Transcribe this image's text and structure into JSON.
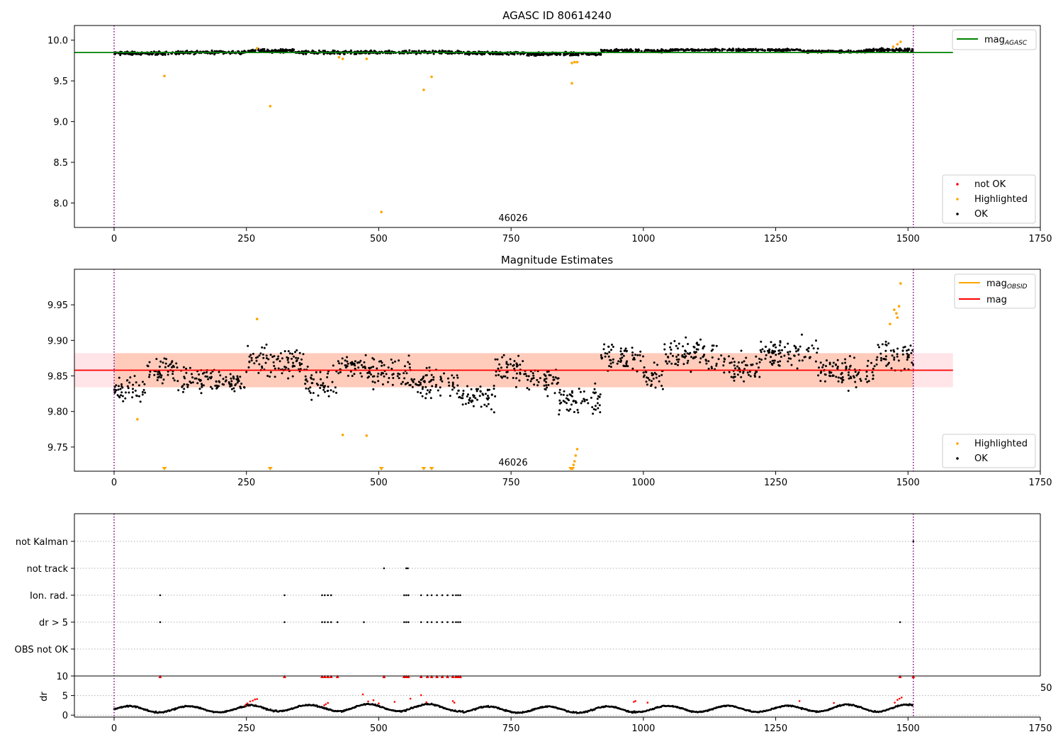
{
  "chart_data": [
    {
      "type": "scatter",
      "title": "AGASC ID 80614240",
      "xlim": [
        -75,
        1750
      ],
      "ylim": [
        7.7,
        10.18
      ],
      "xticks": [
        0,
        250,
        500,
        750,
        1000,
        1250,
        1500,
        1750
      ],
      "yticks": [
        8.0,
        8.5,
        9.0,
        9.5,
        10.0
      ],
      "annotation": "46026",
      "vlines": [
        0,
        1510
      ],
      "mag_agasc": 9.848,
      "legends": {
        "line": [
          {
            "label": "mag",
            "sub": "AGASC",
            "color": "#008000"
          }
        ],
        "markers": [
          {
            "label": "not OK",
            "color": "#ff0000"
          },
          {
            "label": "Highlighted",
            "color": "#ffa500"
          },
          {
            "label": "OK",
            "color": "#000000"
          }
        ]
      },
      "highlighted": [
        [
          95,
          9.56
        ],
        [
          270,
          9.9
        ],
        [
          295,
          9.19
        ],
        [
          425,
          9.79
        ],
        [
          432,
          9.77
        ],
        [
          477,
          9.77
        ],
        [
          505,
          7.89
        ],
        [
          585,
          9.39
        ],
        [
          600,
          9.55
        ],
        [
          865,
          9.47
        ],
        [
          865,
          9.72
        ],
        [
          870,
          9.73
        ],
        [
          875,
          9.73
        ],
        [
          1472,
          9.92
        ],
        [
          1480,
          9.95
        ],
        [
          1486,
          9.98
        ]
      ],
      "ok_segments": [
        {
          "x0": 0,
          "x1": 120,
          "y": 9.84,
          "spread": 0.03
        },
        {
          "x0": 120,
          "x1": 250,
          "y": 9.85,
          "spread": 0.03
        },
        {
          "x0": 250,
          "x1": 340,
          "y": 9.87,
          "spread": 0.03
        },
        {
          "x0": 340,
          "x1": 470,
          "y": 9.85,
          "spread": 0.03
        },
        {
          "x0": 470,
          "x1": 660,
          "y": 9.85,
          "spread": 0.03
        },
        {
          "x0": 660,
          "x1": 780,
          "y": 9.84,
          "spread": 0.03
        },
        {
          "x0": 780,
          "x1": 920,
          "y": 9.83,
          "spread": 0.03
        },
        {
          "x0": 920,
          "x1": 1050,
          "y": 9.87,
          "spread": 0.03
        },
        {
          "x0": 1050,
          "x1": 1300,
          "y": 9.88,
          "spread": 0.02
        },
        {
          "x0": 1300,
          "x1": 1420,
          "y": 9.86,
          "spread": 0.02
        },
        {
          "x0": 1420,
          "x1": 1510,
          "y": 9.88,
          "spread": 0.03
        }
      ]
    },
    {
      "type": "scatter",
      "title": "Magnitude Estimates",
      "xlim": [
        -75,
        1750
      ],
      "ylim": [
        9.716,
        10.0
      ],
      "xticks": [
        0,
        250,
        500,
        750,
        1000,
        1250,
        1500,
        1750
      ],
      "yticks": [
        9.75,
        9.8,
        9.85,
        9.9,
        9.95
      ],
      "annotation": "46026",
      "vlines": [
        0,
        1510
      ],
      "mag": 9.858,
      "band": [
        9.834,
        9.882
      ],
      "band_color": "#ffc8b4",
      "band_pink_color": "#ffe4e8",
      "legends": {
        "line": [
          {
            "label": "mag",
            "sub": "OBSID",
            "color": "#ffa500"
          },
          {
            "label": "mag",
            "sub": "",
            "color": "#ff0000"
          }
        ],
        "markers": [
          {
            "label": "Highlighted",
            "color": "#ffa500"
          },
          {
            "label": "OK",
            "color": "#000000"
          }
        ]
      },
      "highlighted": [
        [
          44,
          9.789
        ],
        [
          270,
          9.93
        ],
        [
          432,
          9.767
        ],
        [
          477,
          9.766
        ],
        [
          865,
          9.72
        ],
        [
          868,
          9.725
        ],
        [
          870,
          9.73
        ],
        [
          872,
          9.738
        ],
        [
          875,
          9.747
        ],
        [
          1466,
          9.923
        ],
        [
          1474,
          9.943
        ],
        [
          1478,
          9.938
        ],
        [
          1480,
          9.932
        ],
        [
          1483,
          9.948
        ],
        [
          1486,
          9.98
        ]
      ],
      "below_range": [
        95,
        295,
        505,
        585,
        600,
        863,
        866
      ],
      "ok_segments": [
        {
          "x0": 0,
          "x1": 60,
          "y": 9.832,
          "spread": 0.025
        },
        {
          "x0": 60,
          "x1": 120,
          "y": 9.86,
          "spread": 0.03
        },
        {
          "x0": 120,
          "x1": 200,
          "y": 9.845,
          "spread": 0.025
        },
        {
          "x0": 200,
          "x1": 250,
          "y": 9.84,
          "spread": 0.025
        },
        {
          "x0": 250,
          "x1": 360,
          "y": 9.868,
          "spread": 0.03
        },
        {
          "x0": 360,
          "x1": 420,
          "y": 9.84,
          "spread": 0.03
        },
        {
          "x0": 420,
          "x1": 480,
          "y": 9.862,
          "spread": 0.03
        },
        {
          "x0": 480,
          "x1": 560,
          "y": 9.855,
          "spread": 0.03
        },
        {
          "x0": 560,
          "x1": 650,
          "y": 9.84,
          "spread": 0.03
        },
        {
          "x0": 650,
          "x1": 720,
          "y": 9.82,
          "spread": 0.03
        },
        {
          "x0": 720,
          "x1": 780,
          "y": 9.86,
          "spread": 0.03
        },
        {
          "x0": 780,
          "x1": 840,
          "y": 9.845,
          "spread": 0.03
        },
        {
          "x0": 840,
          "x1": 920,
          "y": 9.815,
          "spread": 0.03
        },
        {
          "x0": 920,
          "x1": 1000,
          "y": 9.875,
          "spread": 0.03
        },
        {
          "x0": 1000,
          "x1": 1040,
          "y": 9.85,
          "spread": 0.03
        },
        {
          "x0": 1040,
          "x1": 1150,
          "y": 9.88,
          "spread": 0.03
        },
        {
          "x0": 1150,
          "x1": 1220,
          "y": 9.86,
          "spread": 0.03
        },
        {
          "x0": 1220,
          "x1": 1330,
          "y": 9.882,
          "spread": 0.03
        },
        {
          "x0": 1330,
          "x1": 1440,
          "y": 9.855,
          "spread": 0.03
        },
        {
          "x0": 1440,
          "x1": 1510,
          "y": 9.88,
          "spread": 0.03
        }
      ]
    },
    {
      "type": "scatter",
      "title": "",
      "xlim": [
        -75,
        1750
      ],
      "xticks": [
        0,
        250,
        500,
        750,
        1000,
        1250,
        1500,
        1750
      ],
      "vlines": [
        0,
        1510
      ],
      "categories": [
        "not Kalman",
        "not track",
        "Ion. rad.",
        "dr > 5",
        "OBS not OK"
      ],
      "flags": {
        "not Kalman": [
          1510
        ],
        "not track": [
          510,
          552,
          555
        ],
        "Ion. rad.": [
          87,
          322,
          393,
          398,
          404,
          410,
          548,
          552,
          556,
          580,
          592,
          600,
          610,
          620,
          630,
          640,
          646,
          650,
          654
        ],
        "dr > 5": [
          87,
          322,
          393,
          398,
          404,
          410,
          422,
          472,
          548,
          552,
          556,
          580,
          592,
          600,
          610,
          620,
          630,
          640,
          646,
          650,
          654,
          1485
        ]
      },
      "dr": {
        "ylabel": "dr",
        "ylim": [
          -0.5,
          10
        ],
        "yticks": [
          0,
          5,
          10
        ],
        "right_label": "50",
        "red_high": [
          87,
          322,
          393,
          398,
          404,
          410,
          422,
          510,
          548,
          552,
          556,
          580,
          592,
          600,
          610,
          620,
          630,
          640,
          646,
          650,
          654,
          1485,
          1510
        ],
        "red_points": [
          [
            248,
            2.5
          ],
          [
            252,
            3
          ],
          [
            257,
            3.5
          ],
          [
            262,
            3.7
          ],
          [
            266,
            4
          ],
          [
            270,
            4.1
          ],
          [
            397,
            2.5
          ],
          [
            400,
            2.8
          ],
          [
            404,
            3.1
          ],
          [
            470,
            5.3
          ],
          [
            480,
            3.5
          ],
          [
            490,
            3.8
          ],
          [
            500,
            3
          ],
          [
            530,
            3.4
          ],
          [
            560,
            4.2
          ],
          [
            580,
            5.1
          ],
          [
            590,
            3.3
          ],
          [
            640,
            3.6
          ],
          [
            643,
            3.2
          ],
          [
            982,
            3.4
          ],
          [
            985,
            3.6
          ],
          [
            1008,
            3.2
          ],
          [
            1295,
            3.6
          ],
          [
            1360,
            3.1
          ],
          [
            1475,
            3.2
          ],
          [
            1480,
            3.9
          ],
          [
            1484,
            4.2
          ],
          [
            1488,
            4.5
          ]
        ],
        "segments": [
          {
            "x0": 0,
            "x1": 250,
            "level": 1.5,
            "amp": 0.8
          },
          {
            "x0": 250,
            "x1": 400,
            "level": 1.8,
            "amp": 0.8
          },
          {
            "x0": 400,
            "x1": 660,
            "level": 1.9,
            "amp": 0.9
          },
          {
            "x0": 660,
            "x1": 980,
            "level": 1.4,
            "amp": 0.8
          },
          {
            "x0": 980,
            "x1": 1300,
            "level": 1.6,
            "amp": 0.8
          },
          {
            "x0": 1300,
            "x1": 1510,
            "level": 1.8,
            "amp": 0.9
          }
        ]
      }
    }
  ]
}
